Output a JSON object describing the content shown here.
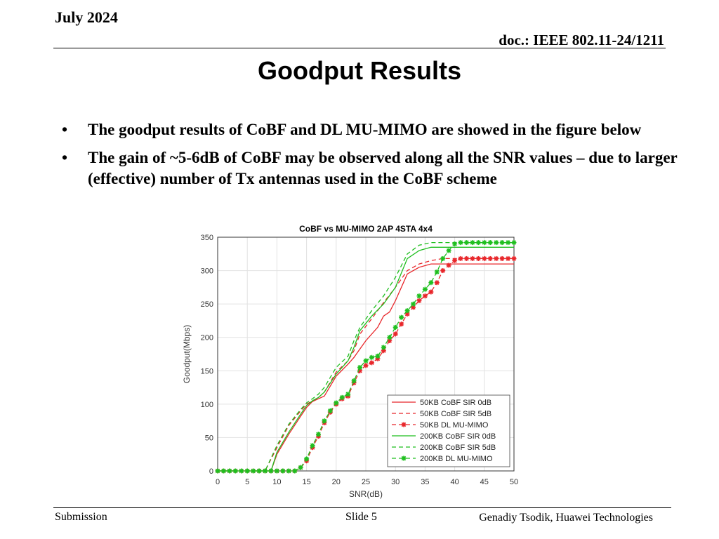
{
  "header": {
    "date": "July 2024",
    "doc": "doc.: IEEE 802.11-24/1211"
  },
  "slide": {
    "title": "Goodput Results",
    "bullets": [
      "The goodput results of CoBF and DL MU-MIMO are showed in the figure below",
      "The gain of ~5-6dB of CoBF may be observed along all the SNR values – due to larger (effective) number of Tx antennas used in the CoBF scheme"
    ],
    "bullet_symbol": "•"
  },
  "footer": {
    "left": "Submission",
    "center": "Slide 5",
    "right": "Genadiy Tsodik, Huawei Technologies"
  },
  "chart_data": {
    "type": "line",
    "title": "CoBF vs MU-MIMO 2AP 4STA 4x4",
    "xlabel": "SNR(dB)",
    "ylabel": "Goodput(Mbps)",
    "xlim": [
      0,
      50
    ],
    "ylim": [
      0,
      350
    ],
    "xticks": [
      0,
      5,
      10,
      15,
      20,
      25,
      30,
      35,
      40,
      45,
      50
    ],
    "yticks": [
      0,
      50,
      100,
      150,
      200,
      250,
      300,
      350
    ],
    "grid": true,
    "legend_position": "bottom-right",
    "series": [
      {
        "name": "50KB CoBF SIR 0dB",
        "color": "#e8262a",
        "dash": "solid",
        "marker": "none",
        "x": [
          0,
          9,
          10,
          12,
          14,
          15,
          16,
          17,
          18,
          20,
          22,
          23,
          25,
          27,
          28,
          29,
          30,
          32,
          34,
          36,
          38,
          40,
          50
        ],
        "y": [
          0,
          0,
          25,
          55,
          82,
          95,
          104,
          108,
          112,
          142,
          160,
          170,
          195,
          215,
          232,
          238,
          255,
          295,
          305,
          310,
          310,
          310,
          310
        ]
      },
      {
        "name": "50KB CoBF SIR 5dB",
        "color": "#e8262a",
        "dash": "dashed",
        "marker": "none",
        "x": [
          0,
          8,
          10,
          12,
          14,
          15,
          16,
          17,
          18,
          20,
          22,
          23,
          24,
          26,
          28,
          30,
          32,
          34,
          36,
          38,
          40,
          50
        ],
        "y": [
          0,
          0,
          35,
          68,
          90,
          100,
          105,
          110,
          118,
          148,
          165,
          180,
          205,
          228,
          252,
          275,
          300,
          310,
          315,
          318,
          318,
          318
        ]
      },
      {
        "name": "50KB DL MU-MIMO",
        "color": "#e8262a",
        "dash": "dashed",
        "marker": "star",
        "x": [
          0,
          1,
          2,
          3,
          4,
          5,
          6,
          7,
          8,
          9,
          10,
          11,
          12,
          13,
          14,
          15,
          16,
          17,
          18,
          19,
          20,
          21,
          22,
          23,
          24,
          25,
          26,
          27,
          28,
          29,
          30,
          31,
          32,
          33,
          34,
          35,
          36,
          37,
          38,
          39,
          40,
          41,
          42,
          43,
          44,
          45,
          46,
          47,
          48,
          49,
          50
        ],
        "y": [
          0,
          0,
          0,
          0,
          0,
          0,
          0,
          0,
          0,
          0,
          0,
          0,
          0,
          0,
          5,
          15,
          35,
          52,
          72,
          88,
          100,
          108,
          112,
          132,
          150,
          158,
          162,
          168,
          180,
          195,
          205,
          220,
          235,
          245,
          255,
          262,
          268,
          282,
          300,
          308,
          315,
          318,
          318,
          318,
          318,
          318,
          318,
          318,
          318,
          318,
          318
        ]
      },
      {
        "name": "200KB CoBF SIR 0dB",
        "color": "#1fbf1f",
        "dash": "solid",
        "marker": "none",
        "x": [
          0,
          9,
          10,
          12,
          14,
          15,
          16,
          17,
          18,
          20,
          22,
          23,
          24,
          26,
          28,
          30,
          32,
          34,
          36,
          38,
          40,
          50
        ],
        "y": [
          0,
          0,
          28,
          58,
          85,
          98,
          105,
          110,
          118,
          145,
          165,
          185,
          210,
          232,
          250,
          275,
          318,
          330,
          335,
          335,
          335,
          335
        ]
      },
      {
        "name": "200KB CoBF SIR 5dB",
        "color": "#1fbf1f",
        "dash": "dashed",
        "marker": "none",
        "x": [
          0,
          8,
          10,
          12,
          14,
          15,
          16,
          17,
          18,
          20,
          22,
          23,
          24,
          26,
          28,
          30,
          32,
          34,
          36,
          38,
          40,
          50
        ],
        "y": [
          0,
          0,
          38,
          70,
          92,
          102,
          108,
          115,
          125,
          155,
          172,
          195,
          215,
          240,
          262,
          290,
          325,
          338,
          342,
          342,
          342,
          342
        ]
      },
      {
        "name": "200KB DL MU-MIMO",
        "color": "#1fbf1f",
        "dash": "dashed",
        "marker": "star",
        "x": [
          0,
          1,
          2,
          3,
          4,
          5,
          6,
          7,
          8,
          9,
          10,
          11,
          12,
          13,
          14,
          15,
          16,
          17,
          18,
          19,
          20,
          21,
          22,
          23,
          24,
          25,
          26,
          27,
          28,
          29,
          30,
          31,
          32,
          33,
          34,
          35,
          36,
          37,
          38,
          39,
          40,
          41,
          42,
          43,
          44,
          45,
          46,
          47,
          48,
          49,
          50
        ],
        "y": [
          0,
          0,
          0,
          0,
          0,
          0,
          0,
          0,
          0,
          0,
          0,
          0,
          0,
          0,
          5,
          18,
          38,
          55,
          75,
          90,
          102,
          110,
          115,
          135,
          155,
          165,
          170,
          172,
          185,
          200,
          215,
          230,
          240,
          250,
          262,
          272,
          282,
          298,
          318,
          330,
          340,
          342,
          342,
          342,
          342,
          342,
          342,
          342,
          342,
          342,
          342
        ]
      }
    ]
  }
}
